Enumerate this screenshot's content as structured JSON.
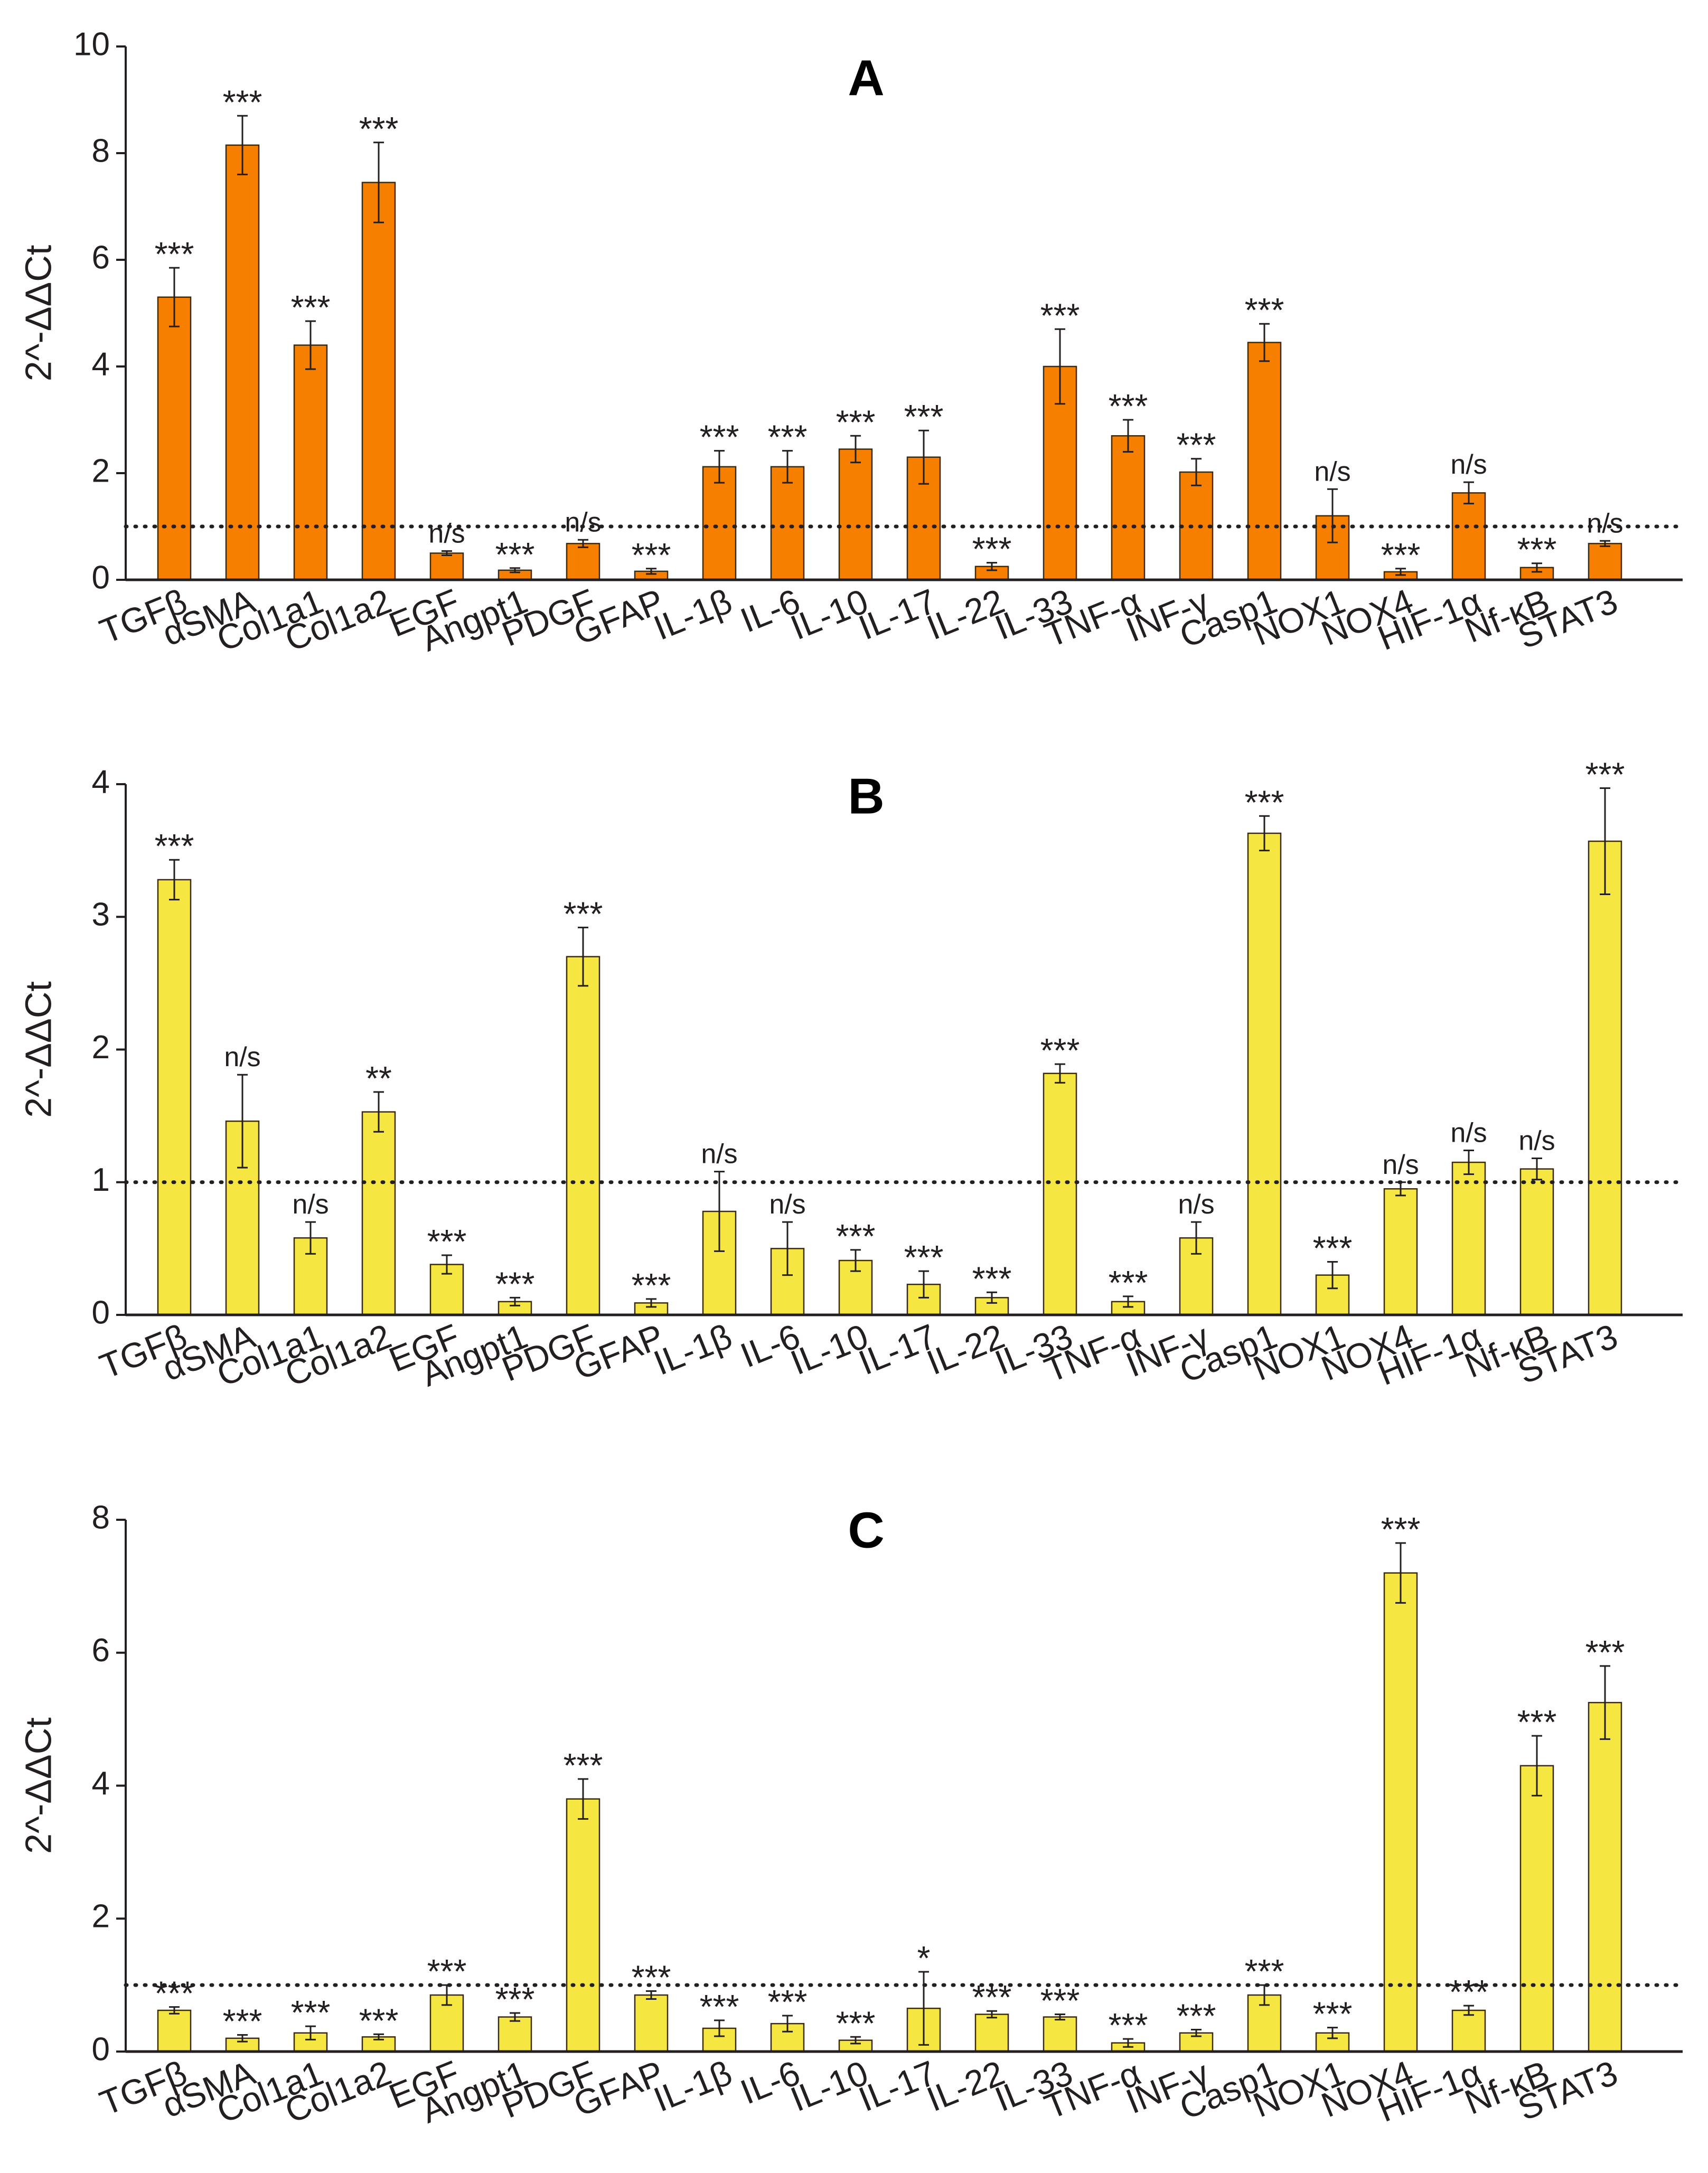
{
  "chart_data": [
    {
      "type": "bar",
      "title": "A",
      "ylabel": "2^-ΔΔCt",
      "xlabel": "",
      "ylim": [
        0,
        10
      ],
      "yticks": [
        0,
        2,
        4,
        6,
        8,
        10
      ],
      "reference_line": 1,
      "bar_color": "#f77f00",
      "categories": [
        "TGFβ",
        "αSMA",
        "Col1a1",
        "Col1a2",
        "EGF",
        "Angpt1",
        "PDGF",
        "GFAP",
        "IL-1β",
        "IL-6",
        "IL-10",
        "IL-17",
        "IL-22",
        "IL-33",
        "TNF-α",
        "INF-γ",
        "Casp1",
        "NOX1",
        "NOX4",
        "HIF-1α",
        "Nf-κB",
        "STAT3"
      ],
      "values": [
        5.3,
        8.15,
        4.4,
        7.45,
        0.5,
        0.18,
        0.68,
        0.16,
        2.12,
        2.12,
        2.45,
        2.3,
        0.25,
        4.0,
        2.7,
        2.02,
        4.45,
        1.2,
        0.15,
        1.63,
        0.23,
        0.68
      ],
      "errors": [
        0.55,
        0.55,
        0.45,
        0.75,
        0.04,
        0.04,
        0.07,
        0.05,
        0.3,
        0.3,
        0.25,
        0.5,
        0.07,
        0.7,
        0.3,
        0.25,
        0.35,
        0.5,
        0.06,
        0.2,
        0.08,
        0.05
      ],
      "significance": [
        "***",
        "***",
        "***",
        "***",
        "n/s",
        "***",
        "n/s",
        "***",
        "***",
        "***",
        "***",
        "***",
        "***",
        "***",
        "***",
        "***",
        "***",
        "n/s",
        "***",
        "n/s",
        "***",
        "n/s"
      ]
    },
    {
      "type": "bar",
      "title": "B",
      "ylabel": "2^-ΔΔCt",
      "xlabel": "",
      "ylim": [
        0,
        4
      ],
      "yticks": [
        0,
        1,
        2,
        3,
        4
      ],
      "reference_line": 1,
      "bar_color": "#f5e642",
      "categories": [
        "TGFβ",
        "αSMA",
        "Col1a1",
        "Col1a2",
        "EGF",
        "Angpt1",
        "PDGF",
        "GFAP",
        "IL-1β",
        "IL-6",
        "IL-10",
        "IL-17",
        "IL-22",
        "IL-33",
        "TNF-α",
        "INF-γ",
        "Casp1",
        "NOX1",
        "NOX4",
        "HIF-1α",
        "Nf-κB",
        "STAT3"
      ],
      "values": [
        3.28,
        1.46,
        0.58,
        1.53,
        0.38,
        0.1,
        2.7,
        0.09,
        0.78,
        0.5,
        0.41,
        0.23,
        0.13,
        1.82,
        0.1,
        0.58,
        3.63,
        0.3,
        0.95,
        1.15,
        1.1,
        3.57
      ],
      "errors": [
        0.15,
        0.35,
        0.12,
        0.15,
        0.07,
        0.03,
        0.22,
        0.03,
        0.3,
        0.2,
        0.08,
        0.1,
        0.04,
        0.07,
        0.04,
        0.12,
        0.13,
        0.1,
        0.05,
        0.09,
        0.08,
        0.4
      ],
      "significance": [
        "***",
        "n/s",
        "n/s",
        "**",
        "***",
        "***",
        "***",
        "***",
        "n/s",
        "n/s",
        "***",
        "***",
        "***",
        "***",
        "***",
        "n/s",
        "***",
        "***",
        "n/s",
        "n/s",
        "n/s",
        "***"
      ]
    },
    {
      "type": "bar",
      "title": "C",
      "ylabel": "2^-ΔΔCt",
      "xlabel": "",
      "ylim": [
        0,
        8
      ],
      "yticks": [
        0,
        2,
        4,
        6,
        8
      ],
      "reference_line": 1,
      "bar_color": "#f5e642",
      "categories": [
        "TGFβ",
        "αSMA",
        "Col1a1",
        "Col1a2",
        "EGF",
        "Angpt1",
        "PDGF",
        "GFAP",
        "IL-1β",
        "IL-6",
        "IL-10",
        "IL-17",
        "IL-22",
        "IL-33",
        "TNF-α",
        "INF-γ",
        "Casp1",
        "NOX1",
        "NOX4",
        "HIF-1α",
        "Nf-κB",
        "STAT3"
      ],
      "values": [
        0.62,
        0.2,
        0.28,
        0.22,
        0.85,
        0.52,
        3.8,
        0.85,
        0.35,
        0.42,
        0.17,
        0.65,
        0.56,
        0.52,
        0.13,
        0.28,
        0.85,
        0.28,
        7.2,
        0.62,
        4.3,
        5.25
      ],
      "errors": [
        0.05,
        0.05,
        0.1,
        0.04,
        0.15,
        0.06,
        0.3,
        0.06,
        0.12,
        0.12,
        0.05,
        0.55,
        0.05,
        0.04,
        0.06,
        0.05,
        0.15,
        0.08,
        0.45,
        0.07,
        0.45,
        0.55
      ],
      "significance": [
        "***",
        "***",
        "***",
        "***",
        "***",
        "***",
        "***",
        "***",
        "***",
        "***",
        "***",
        "*",
        "***",
        "***",
        "***",
        "***",
        "***",
        "***",
        "***",
        "***",
        "***",
        "***"
      ]
    }
  ]
}
